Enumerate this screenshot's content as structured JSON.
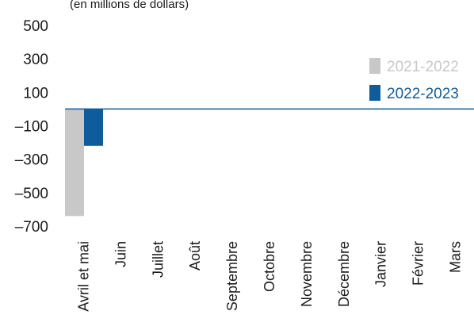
{
  "chart_data": {
    "type": "bar",
    "subtitle": "(en millions de dollars)",
    "categories": [
      "Avril et mai",
      "Juin",
      "Juillet",
      "Août",
      "Septembre",
      "Octobre",
      "Novembre",
      "Décembre",
      "Janvier",
      "Février",
      "Mars"
    ],
    "series": [
      {
        "name": "2021-2022",
        "color": "#c8c8c8",
        "values": [
          -640,
          null,
          null,
          null,
          null,
          null,
          null,
          null,
          null,
          null,
          null
        ]
      },
      {
        "name": "2022-2023",
        "color": "#0f5c9c",
        "values": [
          -220,
          null,
          null,
          null,
          null,
          null,
          null,
          null,
          null,
          null,
          null
        ]
      }
    ],
    "y_ticks": [
      500,
      300,
      100,
      -100,
      -300,
      -500,
      -700
    ],
    "y_tick_labels": [
      "500",
      "300",
      "100",
      "–100",
      "–300",
      "–500",
      "–700"
    ],
    "ylim": [
      -700,
      500
    ],
    "grid": false,
    "legend_position": "top-right",
    "zero_line_color": "#0f5c9c"
  }
}
